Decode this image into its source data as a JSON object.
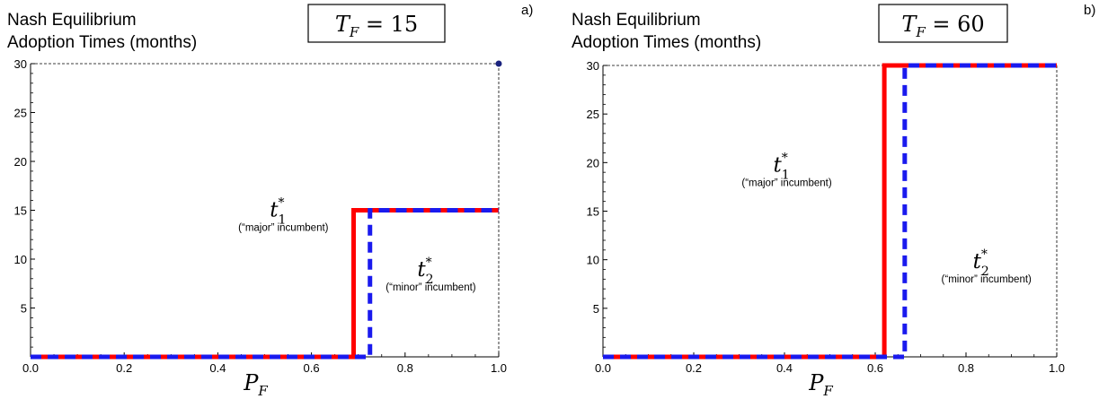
{
  "chart_data": [
    {
      "type": "line",
      "panel_label": "a)",
      "title_lines": [
        "Nash Equilibrium",
        "Adoption Times (months)"
      ],
      "box_label": {
        "var": "T",
        "sub": "F",
        "eq": "= 15"
      },
      "xlabel": {
        "var": "P",
        "sub": "F"
      },
      "xlim": [
        0,
        1
      ],
      "ylim": [
        0,
        30
      ],
      "xticks": [
        "0.0",
        "0.2",
        "0.4",
        "0.6",
        "0.8",
        "1.0"
      ],
      "yticks": [
        "5",
        "10",
        "15",
        "20",
        "25",
        "30"
      ],
      "series": [
        {
          "color": "#ff0000",
          "style": "solid",
          "x": [
            0,
            0.69,
            0.69,
            1.0
          ],
          "y": [
            0,
            0,
            15,
            15
          ]
        },
        {
          "color": "#1a1aee",
          "style": "dashed",
          "x": [
            0,
            0.725,
            0.725,
            1.0
          ],
          "y": [
            0,
            0,
            15,
            15
          ]
        }
      ],
      "point": {
        "x": 1.0,
        "y": 30,
        "color": "#1a237e"
      },
      "annotations": [
        {
          "var": "t",
          "sup": "*",
          "sub": "1",
          "caption": "(“major” incumbent)",
          "x": 0.54,
          "y": 13.9
        },
        {
          "var": "t",
          "sup": "*",
          "sub": "2",
          "caption": "(“minor” incumbent)",
          "x": 0.855,
          "y": 7.8
        }
      ]
    },
    {
      "type": "line",
      "panel_label": "b)",
      "title_lines": [
        "Nash Equilibrium",
        "Adoption Times (months)"
      ],
      "box_label": {
        "var": "T",
        "sub": "F",
        "eq": "= 60"
      },
      "xlabel": {
        "var": "P",
        "sub": "F"
      },
      "xlim": [
        0,
        1
      ],
      "ylim": [
        0,
        30
      ],
      "xticks": [
        "0.0",
        "0.2",
        "0.4",
        "0.6",
        "0.8",
        "1.0"
      ],
      "yticks": [
        "5",
        "10",
        "15",
        "20",
        "25",
        "30"
      ],
      "series": [
        {
          "color": "#ff0000",
          "style": "solid",
          "x": [
            0,
            0.62,
            0.62,
            1.0
          ],
          "y": [
            0,
            0,
            30,
            30
          ]
        },
        {
          "color": "#1a1aee",
          "style": "dashed",
          "x": [
            0,
            0.665,
            0.665,
            1.0
          ],
          "y": [
            0,
            0,
            30,
            30
          ]
        }
      ],
      "point": null,
      "annotations": [
        {
          "var": "t",
          "sup": "*",
          "sub": "1",
          "caption": "(“major” incumbent)",
          "x": 0.405,
          "y": 18.6
        },
        {
          "var": "t",
          "sup": "*",
          "sub": "2",
          "caption": "(“minor” incumbent)",
          "x": 0.845,
          "y": 8.7
        }
      ]
    }
  ]
}
